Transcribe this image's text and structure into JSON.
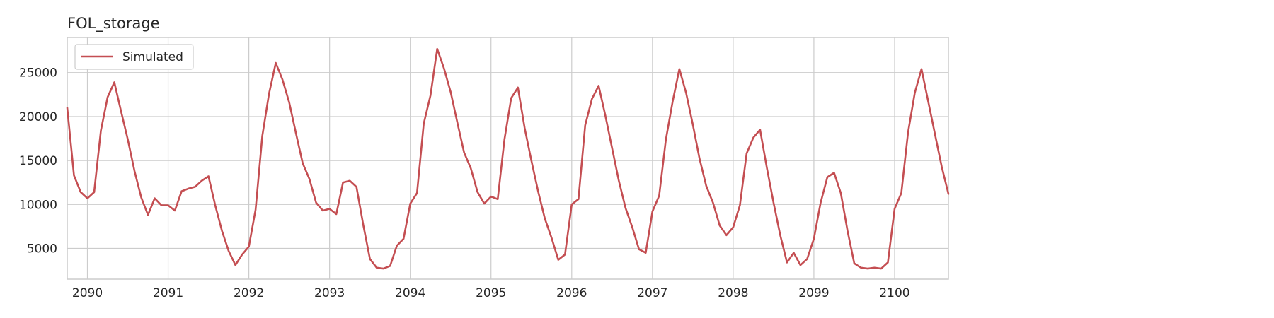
{
  "chart_data": {
    "type": "line",
    "title": "FOL_storage",
    "xlabel": "",
    "ylabel": "",
    "x_tick_labels": [
      "2090",
      "2091",
      "2092",
      "2093",
      "2094",
      "2095",
      "2096",
      "2097",
      "2098",
      "2099",
      "2100"
    ],
    "y_tick_labels": [
      "5000",
      "10000",
      "15000",
      "20000",
      "25000"
    ],
    "y_ticks": [
      5000,
      10000,
      15000,
      20000,
      25000
    ],
    "xlim": [
      "2089-10",
      "2100-09"
    ],
    "ylim": [
      1500,
      29000
    ],
    "grid": true,
    "legend_position": "top-left",
    "line_color": "#c44e52",
    "series": [
      {
        "name": "Simulated",
        "start_month": "2089-10",
        "frequency": "monthly",
        "values": [
          21000,
          13300,
          11400,
          10700,
          11400,
          18400,
          22200,
          23900,
          20600,
          17400,
          13800,
          10800,
          8800,
          10700,
          9900,
          9900,
          9300,
          11500,
          11800,
          12000,
          12700,
          13200,
          9900,
          7000,
          4700,
          3100,
          4300,
          5200,
          9400,
          17800,
          22600,
          26100,
          24200,
          21600,
          18100,
          14700,
          12900,
          10200,
          9300,
          9500,
          8900,
          12500,
          12700,
          12000,
          7700,
          3800,
          2800,
          2700,
          3000,
          5300,
          6100,
          10100,
          11300,
          19200,
          22400,
          27700,
          25500,
          22800,
          19300,
          15900,
          14100,
          11400,
          10100,
          10900,
          10600,
          17400,
          22100,
          23300,
          18700,
          15000,
          11500,
          8400,
          6200,
          3700,
          4300,
          10000,
          10600,
          19000,
          22000,
          23500,
          20100,
          16400,
          12700,
          9600,
          7400,
          4900,
          4500,
          9200,
          11000,
          17400,
          21700,
          25400,
          22700,
          19100,
          15200,
          12100,
          10200,
          7600,
          6500,
          7400,
          9900,
          15800,
          17600,
          18500,
          14200,
          10200,
          6500,
          3400,
          4500,
          3100,
          3800,
          6100,
          10200,
          13100,
          13600,
          11300,
          7000,
          3300,
          2800,
          2700,
          2800,
          2700,
          3400,
          9500,
          11300,
          18200,
          22700,
          25400,
          21700,
          18000,
          14300,
          11200
        ]
      }
    ]
  }
}
